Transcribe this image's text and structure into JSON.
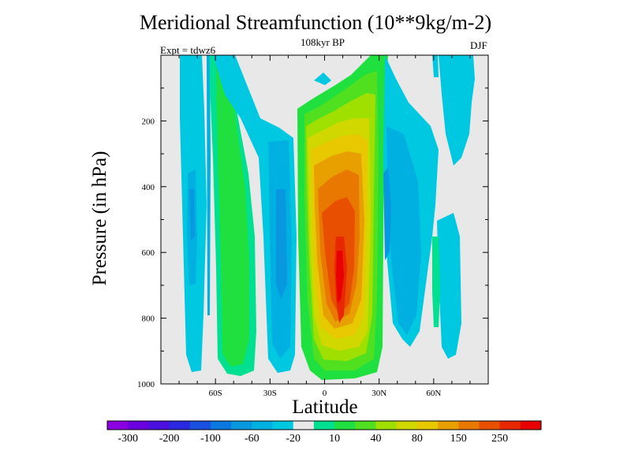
{
  "title": "Meridional Streamfunction (10**9kg/m-2)",
  "subtitle": "108kyr BP",
  "expt_label": "Expt = tdwz6",
  "season_label": "DJF",
  "chart_data": {
    "type": "heatmap",
    "title": "Meridional Streamfunction (10**9kg/m-2)",
    "xlabel": "Latitude",
    "ylabel": "Pressure (in hPa)",
    "x_ticks": [
      "60S",
      "30S",
      "0",
      "30N",
      "60N"
    ],
    "y_ticks": [
      "200",
      "400",
      "600",
      "800",
      "1000"
    ],
    "ylim": [
      1000,
      0
    ],
    "grid": false,
    "colorbar": {
      "labels": [
        "-300",
        "-200",
        "-100",
        "-60",
        "-20",
        "10",
        "40",
        "80",
        "150",
        "250"
      ],
      "colors": [
        "#8a00e0",
        "#6a00e0",
        "#4b10e0",
        "#2a28e0",
        "#1a50e0",
        "#0a78e0",
        "#0898e0",
        "#00b0e0",
        "#00c8e0",
        "#e8e8e8",
        "#00e090",
        "#20e040",
        "#50e020",
        "#a0e000",
        "#d0d800",
        "#e8c800",
        "#e8a000",
        "#e87800",
        "#e85000",
        "#e82800",
        "#e80000"
      ]
    },
    "features": [
      {
        "name": "southern polar negative cell",
        "min": -40
      },
      {
        "name": "southern mid-latitude positive cell",
        "max": 60
      },
      {
        "name": "southern subtropical negative cell",
        "min": -60
      },
      {
        "name": "tropical positive cell",
        "max": 260
      },
      {
        "name": "northern subtropical negative cell",
        "min": -60
      },
      {
        "name": "northern high-latitude positive cell",
        "max": 10
      }
    ]
  }
}
